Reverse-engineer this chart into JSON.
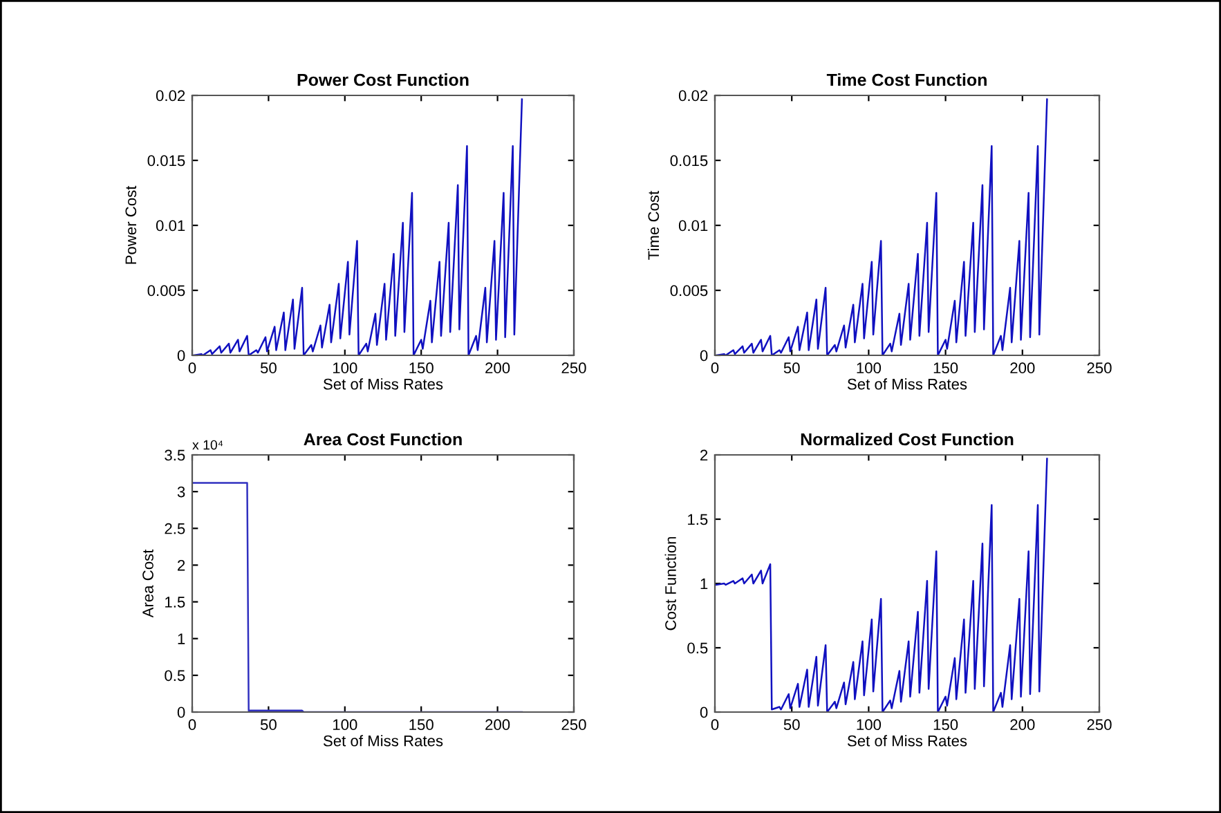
{
  "chart_data": [
    {
      "type": "line",
      "title": "Power Cost Function",
      "xlabel": "Set of Miss Rates",
      "ylabel": "Power Cost",
      "color": "#1010c0",
      "xlim": [
        0,
        250
      ],
      "xticks": [
        0,
        50,
        100,
        150,
        200,
        250
      ],
      "ylim": [
        0,
        0.02
      ],
      "yticks": [
        0,
        0.005,
        0.01,
        0.015,
        0.02
      ],
      "grid": false,
      "x": [
        1,
        6,
        7,
        12,
        13,
        18,
        19,
        24,
        25,
        30,
        31,
        36,
        37,
        42,
        43,
        48,
        49,
        54,
        55,
        60,
        61,
        66,
        67,
        72,
        73,
        78,
        79,
        84,
        85,
        90,
        91,
        96,
        97,
        102,
        103,
        108,
        109,
        114,
        115,
        120,
        121,
        126,
        127,
        132,
        133,
        138,
        139,
        144,
        145,
        150,
        151,
        156,
        157,
        162,
        163,
        168,
        169,
        174,
        175,
        180,
        181,
        186,
        187,
        192,
        193,
        198,
        199,
        204,
        205,
        210,
        211,
        216
      ],
      "values": [
        0,
        0.0001,
        0,
        0.0004,
        0.0001,
        0.0007,
        0.0002,
        0.0009,
        0.0002,
        0.0012,
        0.0003,
        0.0015,
        0,
        0.0004,
        0.0002,
        0.0014,
        0.0003,
        0.0022,
        0.0004,
        0.0033,
        0.0004,
        0.0043,
        0.0005,
        0.0052,
        0,
        0.0008,
        0.0003,
        0.0023,
        0.0006,
        0.0039,
        0.001,
        0.0055,
        0.0013,
        0.0072,
        0.0016,
        0.0088,
        0,
        0.0009,
        0.0003,
        0.0032,
        0.0008,
        0.0055,
        0.0012,
        0.0078,
        0.0015,
        0.0102,
        0.0018,
        0.0125,
        0,
        0.0012,
        0.0005,
        0.0042,
        0.001,
        0.0072,
        0.0015,
        0.0102,
        0.0018,
        0.0131,
        0.002,
        0.0161,
        0,
        0.0015,
        0.0004,
        0.0052,
        0.001,
        0.0088,
        0.0012,
        0.0125,
        0.0014,
        0.0161,
        0.0016,
        0.0197
      ]
    },
    {
      "type": "line",
      "title": "Time Cost Function",
      "xlabel": "Set of Miss Rates",
      "ylabel": "Time Cost",
      "color": "#1010c0",
      "xlim": [
        0,
        250
      ],
      "xticks": [
        0,
        50,
        100,
        150,
        200,
        250
      ],
      "ylim": [
        0,
        0.02
      ],
      "yticks": [
        0,
        0.005,
        0.01,
        0.015,
        0.02
      ],
      "grid": false,
      "x": [
        1,
        6,
        7,
        12,
        13,
        18,
        19,
        24,
        25,
        30,
        31,
        36,
        37,
        42,
        43,
        48,
        49,
        54,
        55,
        60,
        61,
        66,
        67,
        72,
        73,
        78,
        79,
        84,
        85,
        90,
        91,
        96,
        97,
        102,
        103,
        108,
        109,
        114,
        115,
        120,
        121,
        126,
        127,
        132,
        133,
        138,
        139,
        144,
        145,
        150,
        151,
        156,
        157,
        162,
        163,
        168,
        169,
        174,
        175,
        180,
        181,
        186,
        187,
        192,
        193,
        198,
        199,
        204,
        205,
        210,
        211,
        216
      ],
      "values": [
        0,
        0.0001,
        0,
        0.0004,
        0.0001,
        0.0007,
        0.0002,
        0.0009,
        0.0002,
        0.0012,
        0.0003,
        0.0015,
        0,
        0.0004,
        0.0002,
        0.0014,
        0.0003,
        0.0022,
        0.0004,
        0.0033,
        0.0004,
        0.0043,
        0.0005,
        0.0052,
        0,
        0.0008,
        0.0003,
        0.0023,
        0.0006,
        0.0039,
        0.001,
        0.0055,
        0.0013,
        0.0072,
        0.0016,
        0.0088,
        0,
        0.0009,
        0.0003,
        0.0032,
        0.0008,
        0.0055,
        0.0012,
        0.0078,
        0.0015,
        0.0102,
        0.0018,
        0.0125,
        0,
        0.0012,
        0.0005,
        0.0042,
        0.001,
        0.0072,
        0.0015,
        0.0102,
        0.0018,
        0.0131,
        0.002,
        0.0161,
        0,
        0.0015,
        0.0004,
        0.0052,
        0.001,
        0.0088,
        0.0012,
        0.0125,
        0.0014,
        0.0161,
        0.0016,
        0.0197
      ]
    },
    {
      "type": "line",
      "title": "Area Cost Function",
      "xlabel": "Set of Miss Rates",
      "ylabel": "Area Cost",
      "color": "#3030c0",
      "xlim": [
        0,
        250
      ],
      "xticks": [
        0,
        50,
        100,
        150,
        200,
        250
      ],
      "ylim": [
        0,
        3.5
      ],
      "yticks": [
        0,
        0.5,
        1,
        1.5,
        2,
        2.5,
        3,
        3.5
      ],
      "grid": false,
      "annotations": [
        "x 10⁴"
      ],
      "x": [
        1,
        36,
        37,
        72,
        73,
        216
      ],
      "values": [
        3.12,
        3.12,
        0.02,
        0.02,
        0,
        0
      ]
    },
    {
      "type": "line",
      "title": "Normalized Cost Function",
      "xlabel": "Set of Miss Rates",
      "ylabel": "Cost Function",
      "color": "#1010c0",
      "xlim": [
        0,
        250
      ],
      "xticks": [
        0,
        50,
        100,
        150,
        200,
        250
      ],
      "ylim": [
        0,
        2
      ],
      "yticks": [
        0,
        0.5,
        1,
        1.5,
        2
      ],
      "grid": false,
      "x": [
        1,
        6,
        7,
        12,
        13,
        18,
        19,
        24,
        25,
        30,
        31,
        36,
        37,
        42,
        43,
        48,
        49,
        54,
        55,
        60,
        61,
        66,
        67,
        72,
        73,
        78,
        79,
        84,
        85,
        90,
        91,
        96,
        97,
        102,
        103,
        108,
        109,
        114,
        115,
        120,
        121,
        126,
        127,
        132,
        133,
        138,
        139,
        144,
        145,
        150,
        151,
        156,
        157,
        162,
        163,
        168,
        169,
        174,
        175,
        180,
        181,
        186,
        187,
        192,
        193,
        198,
        199,
        204,
        205,
        210,
        211,
        216
      ],
      "values": [
        0.99,
        1.0,
        0.99,
        1.02,
        1.0,
        1.04,
        1.0,
        1.07,
        1.0,
        1.1,
        1.0,
        1.15,
        0.02,
        0.04,
        0.02,
        0.14,
        0.03,
        0.22,
        0.04,
        0.33,
        0.04,
        0.43,
        0.05,
        0.52,
        0,
        0.08,
        0.03,
        0.23,
        0.06,
        0.39,
        0.1,
        0.55,
        0.13,
        0.72,
        0.16,
        0.88,
        0,
        0.09,
        0.03,
        0.32,
        0.08,
        0.55,
        0.12,
        0.78,
        0.15,
        1.02,
        0.18,
        1.25,
        0,
        0.12,
        0.05,
        0.42,
        0.1,
        0.72,
        0.15,
        1.02,
        0.18,
        1.31,
        0.2,
        1.61,
        0,
        0.15,
        0.04,
        0.52,
        0.1,
        0.88,
        0.12,
        1.25,
        0.14,
        1.61,
        0.16,
        1.97
      ]
    }
  ]
}
